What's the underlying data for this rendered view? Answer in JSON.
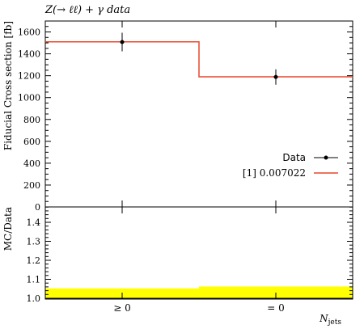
{
  "chart_data": {
    "type": "histogram_ratio",
    "title": "Z(→ ℓℓ) + γ data",
    "xlabel": "N",
    "xlabel_subscript": "jets",
    "ylabel": "Fiducial Cross section [fb]",
    "ratio_ylabel": "MC/Data",
    "categories": [
      "≥ 0",
      "= 0"
    ],
    "ylim": [
      0,
      1700
    ],
    "yticks": [
      0,
      200,
      400,
      600,
      800,
      1000,
      1200,
      1400,
      1600
    ],
    "ratio_ylim": [
      1.0,
      1.5
    ],
    "ratio_yticks": [
      1.0,
      1.1,
      1.2,
      1.3,
      1.4
    ],
    "series": [
      {
        "name": "Data",
        "kind": "points",
        "color": "#000000",
        "values": [
          1508,
          1188
        ],
        "errors": [
          85,
          70
        ]
      },
      {
        "name": "[1] 0.007022",
        "kind": "step",
        "color": "#e8472a",
        "values": [
          1510,
          1190
        ]
      }
    ],
    "ratio": {
      "values": [
        1.0,
        1.0
      ],
      "band_color": "#ffff00",
      "band_high": [
        1.052,
        1.062
      ]
    },
    "legend_position": "right"
  }
}
